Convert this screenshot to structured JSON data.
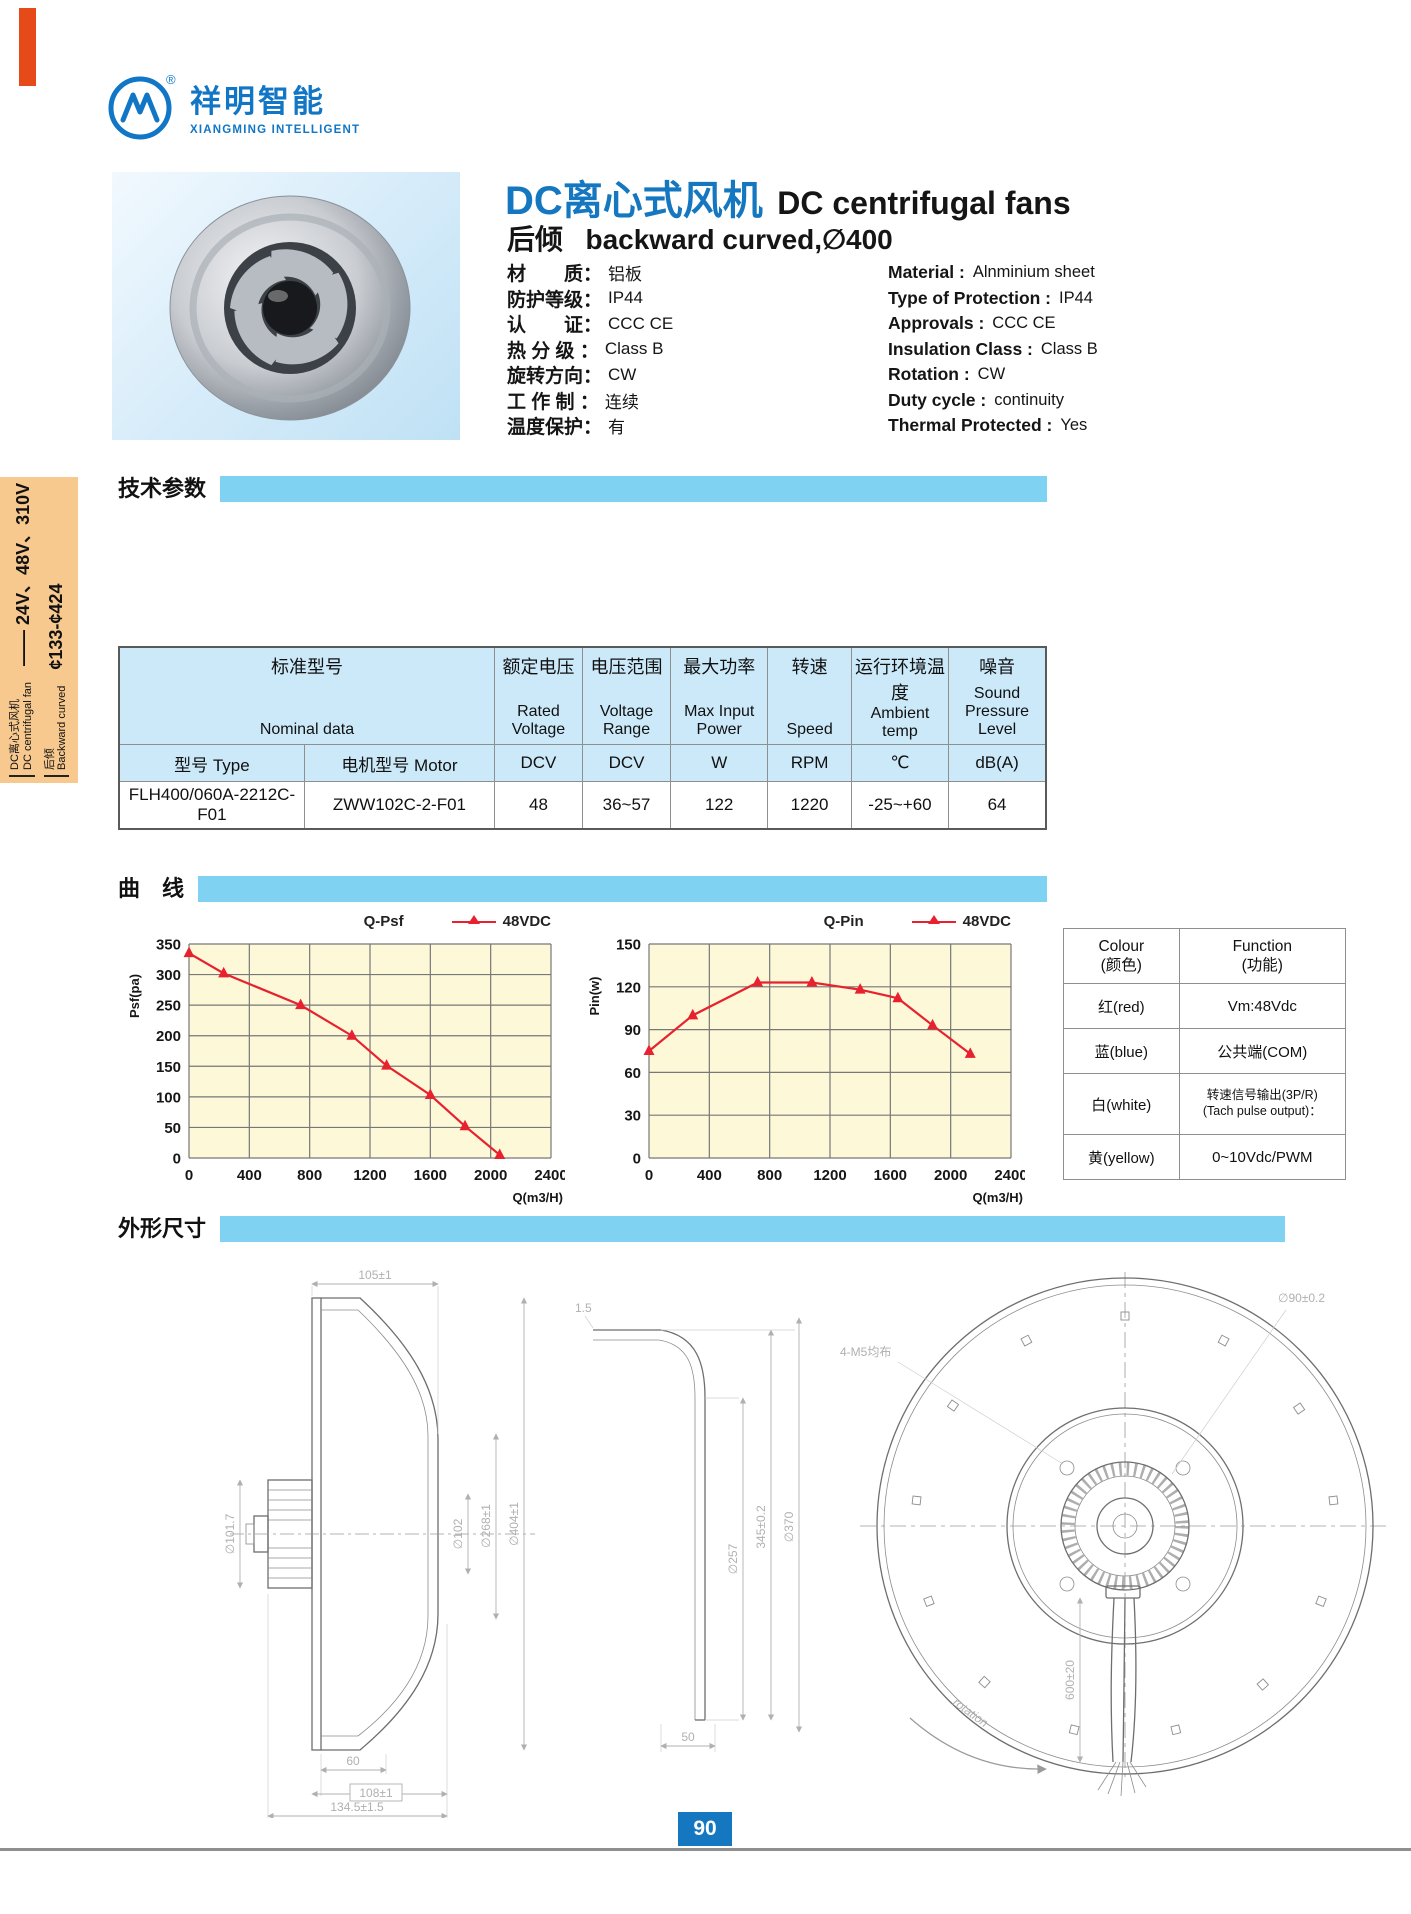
{
  "logo": {
    "cn": "祥明智能",
    "en": "XIANGMING INTELLIGENT",
    "reg": "®"
  },
  "sidebar": {
    "g1_cn": "DC离心式风机",
    "g1_en": "DC centrifugal fan",
    "g1_big": "—— 24V、48V、310V",
    "g2_cn": "后倾",
    "g2_en": "Backward curved",
    "g2_big": "¢133-¢424"
  },
  "header": {
    "title_cn": "DC离心式风机",
    "title_en": "DC centrifugal fans",
    "sub_cn": "后倾",
    "sub_en": "backward curved,∅400"
  },
  "specs": [
    {
      "c_label": "材　　质：",
      "c_value": "铝板",
      "e_label": "Material :",
      "e_value": "Alnminium sheet"
    },
    {
      "c_label": "防护等级：",
      "c_value": "IP44",
      "e_label": "Type of Protection :",
      "e_value": "IP44"
    },
    {
      "c_label": "认　　证：",
      "c_value": "CCC  CE",
      "e_label": "Approvals :",
      "e_value": "CCC  CE"
    },
    {
      "c_label": "热 分 级 ：",
      "c_value": "Class B",
      "e_label": "Insulation Class :",
      "e_value": "Class B"
    },
    {
      "c_label": "旋转方向：",
      "c_value": "CW",
      "e_label": "Rotation :",
      "e_value": "CW"
    },
    {
      "c_label": "工 作 制 ：",
      "c_value": "连续",
      "e_label": "Duty cycle :",
      "e_value": "continuity"
    },
    {
      "c_label": "温度保护：",
      "c_value": "有",
      "e_label": "Thermal Protected :",
      "e_value": "Yes"
    }
  ],
  "sections": {
    "tech": "技术参数",
    "curve": "曲　线",
    "dims": "外形尺寸"
  },
  "table": {
    "model_cn": "标准型号",
    "model_en": "Nominal data",
    "cols": [
      {
        "cn": "额定电压",
        "en": "Rated Voltage"
      },
      {
        "cn": "电压范围",
        "en": "Voltage Range"
      },
      {
        "cn": "最大功率",
        "en": "Max Input Power"
      },
      {
        "cn": "转速",
        "en": "Speed"
      },
      {
        "cn": "运行环境温度",
        "en": "Ambient temp"
      },
      {
        "cn": "噪音",
        "en": "Sound Pressure Level"
      }
    ],
    "sub": [
      "型号 Type",
      "电机型号 Motor",
      "DCV",
      "DCV",
      "W",
      "RPM",
      "℃",
      "dB(A)"
    ],
    "row": [
      "FLH400/060A-2212C-F01",
      "ZWW102C-2-F01",
      "48",
      "36~57",
      "122",
      "1220",
      "-25~+60",
      "64"
    ]
  },
  "chart_data": [
    {
      "type": "line",
      "title": "Q-Psf",
      "xlabel": "Q(m3/H)",
      "ylabel": "Psf(pa)",
      "xlim": [
        0,
        2400
      ],
      "ylim": [
        0,
        350
      ],
      "xticks": [
        0,
        400,
        800,
        1200,
        1600,
        2000,
        2400
      ],
      "yticks": [
        0,
        50,
        100,
        150,
        200,
        250,
        300,
        350
      ],
      "grid": true,
      "plot_bg": "#fcf8d8",
      "legend_position": "top",
      "series": [
        {
          "name": "48VDC",
          "color": "#e8212e",
          "points": [
            [
              0,
              335
            ],
            [
              230,
              302
            ],
            [
              740,
              250
            ],
            [
              1080,
              200
            ],
            [
              1310,
              151
            ],
            [
              1600,
              103
            ],
            [
              1830,
              52
            ],
            [
              2060,
              5
            ]
          ]
        }
      ]
    },
    {
      "type": "line",
      "title": "Q-Pin",
      "xlabel": "Q(m3/H)",
      "ylabel": "Pin(w)",
      "xlim": [
        0,
        2400
      ],
      "ylim": [
        0,
        150
      ],
      "xticks": [
        0,
        400,
        800,
        1200,
        1600,
        2000,
        2400
      ],
      "yticks": [
        0,
        30,
        60,
        90,
        120,
        150
      ],
      "grid": true,
      "plot_bg": "#fcf8d8",
      "legend_position": "top",
      "series": [
        {
          "name": "48VDC",
          "color": "#e8212e",
          "points": [
            [
              0,
              75
            ],
            [
              290,
              100
            ],
            [
              720,
              123
            ],
            [
              1080,
              123
            ],
            [
              1400,
              118
            ],
            [
              1650,
              112
            ],
            [
              1880,
              93
            ],
            [
              2130,
              73
            ]
          ]
        }
      ]
    }
  ],
  "wire_table": {
    "h_col1_l1": "Colour",
    "h_col1_l2": "(颜色)",
    "h_col2_l1": "Function",
    "h_col2_l2": "(功能)",
    "rows": [
      {
        "colour": "红(red)",
        "function": "Vm:48Vdc"
      },
      {
        "colour": "蓝(blue)",
        "function": "公共端(COM)"
      },
      {
        "colour": "白(white)",
        "function": "转速信号输出(3P/R)",
        "function2": "(Tach pulse output)："
      },
      {
        "colour": "黄(yellow)",
        "function": "0~10Vdc/PWM"
      }
    ]
  },
  "drawings": {
    "side": {
      "w105": "105±1",
      "d101": "∅101.7",
      "d102": "∅102",
      "d268": "∅268±1",
      "d404": "∅404±1",
      "w60": "60",
      "w108": "108±1",
      "w134": "134.5±1.5"
    },
    "ring": {
      "t": "1.5",
      "d257": "∅257",
      "d345": "345±0.2",
      "d370": "∅370",
      "w50": "50"
    },
    "front": {
      "holes": "4-M5均布",
      "d90": "∅90±0.2",
      "wire": "600±20",
      "rotation": "rotation"
    }
  },
  "page": {
    "number": "90"
  }
}
